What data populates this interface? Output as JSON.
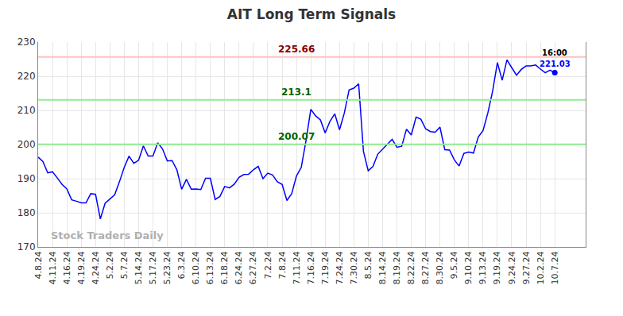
{
  "chart_data": {
    "type": "line",
    "title": "AIT Long Term Signals",
    "color": "#0000ff",
    "categories": [
      "4.8.24",
      null,
      null,
      "4.11.24",
      null,
      null,
      "4.16.24",
      null,
      null,
      "4.19.24",
      null,
      null,
      "4.24.24",
      null,
      null,
      "5.2.24",
      null,
      null,
      "5.7.24",
      null,
      null,
      "5.14.24",
      null,
      null,
      "5.17.24",
      null,
      null,
      "5.23.24",
      null,
      null,
      "6.3.24",
      null,
      null,
      "6.10.24",
      null,
      null,
      "6.13.24",
      null,
      null,
      "6.18.24",
      null,
      null,
      "6.24.24",
      null,
      null,
      "6.27.24",
      null,
      null,
      "7.2.24",
      null,
      null,
      "7.8.24",
      null,
      null,
      "7.11.24",
      null,
      null,
      "7.16.24",
      null,
      null,
      "7.19.24",
      null,
      null,
      "7.24.24",
      null,
      null,
      "7.30.24",
      null,
      null,
      "8.5.24",
      null,
      null,
      "8.14.24",
      null,
      null,
      "8.19.24",
      null,
      null,
      "8.22.24",
      null,
      null,
      "8.27.24",
      null,
      null,
      "8.30.24",
      null,
      null,
      "9.5.24",
      null,
      null,
      "9.10.24",
      null,
      null,
      "9.13.24",
      null,
      null,
      "9.19.24",
      null,
      null,
      "9.24.24",
      null,
      null,
      "9.27.24",
      null,
      null,
      "10.2.24",
      null,
      null,
      "10.7.24"
    ],
    "values": [
      196.3,
      195,
      191.7,
      192,
      190.2,
      188.3,
      187,
      183.8,
      183.4,
      182.9,
      182.9,
      185.6,
      185.4,
      178.2,
      182.8,
      184,
      185.3,
      189.1,
      193.3,
      196.6,
      194.5,
      195.4,
      199.6,
      196.6,
      196.6,
      200.5,
      198.7,
      195.2,
      195.3,
      192.6,
      186.9,
      189.8,
      186.9,
      187,
      186.8,
      190.1,
      190.1,
      183.9,
      184.8,
      187.7,
      187.3,
      188.4,
      190.4,
      191.2,
      191.3,
      192.6,
      193.6,
      190,
      191.6,
      191.1,
      189.1,
      188.3,
      183.6,
      185.6,
      190.8,
      193.3,
      201.2,
      210.3,
      208.4,
      207.2,
      203.4,
      206.8,
      209,
      204.3,
      209.2,
      216,
      216.5,
      217.8,
      198,
      192.3,
      193.6,
      197.2,
      198.7,
      200.1,
      201.5,
      199.2,
      199.5,
      204.5,
      202.8,
      208,
      207.4,
      204.6,
      203.8,
      203.6,
      205.1,
      198.5,
      198.4,
      195.5,
      193.7,
      197.4,
      197.8,
      197.5,
      202.2,
      204.1,
      209.2,
      215.6,
      224,
      218.8,
      224.8,
      222.5,
      220.3,
      222,
      223,
      223,
      223.3,
      222.1,
      221,
      221.8,
      221.03
    ],
    "ylim": [
      170,
      230
    ],
    "yticks": [
      170,
      180,
      190,
      200,
      210,
      220,
      230
    ],
    "grid": true,
    "reference_lines": [
      {
        "value": 225.66,
        "color": "#ffc0c0",
        "label_color": "#8b0000"
      },
      {
        "value": 213.1,
        "color": "#90ee90",
        "label_color": "#006400"
      },
      {
        "value": 200.07,
        "color": "#90ee90",
        "label_color": "#006400"
      }
    ],
    "last_point": {
      "time": "16:00",
      "value": 221.03
    },
    "watermark": "Stock Traders Daily"
  }
}
